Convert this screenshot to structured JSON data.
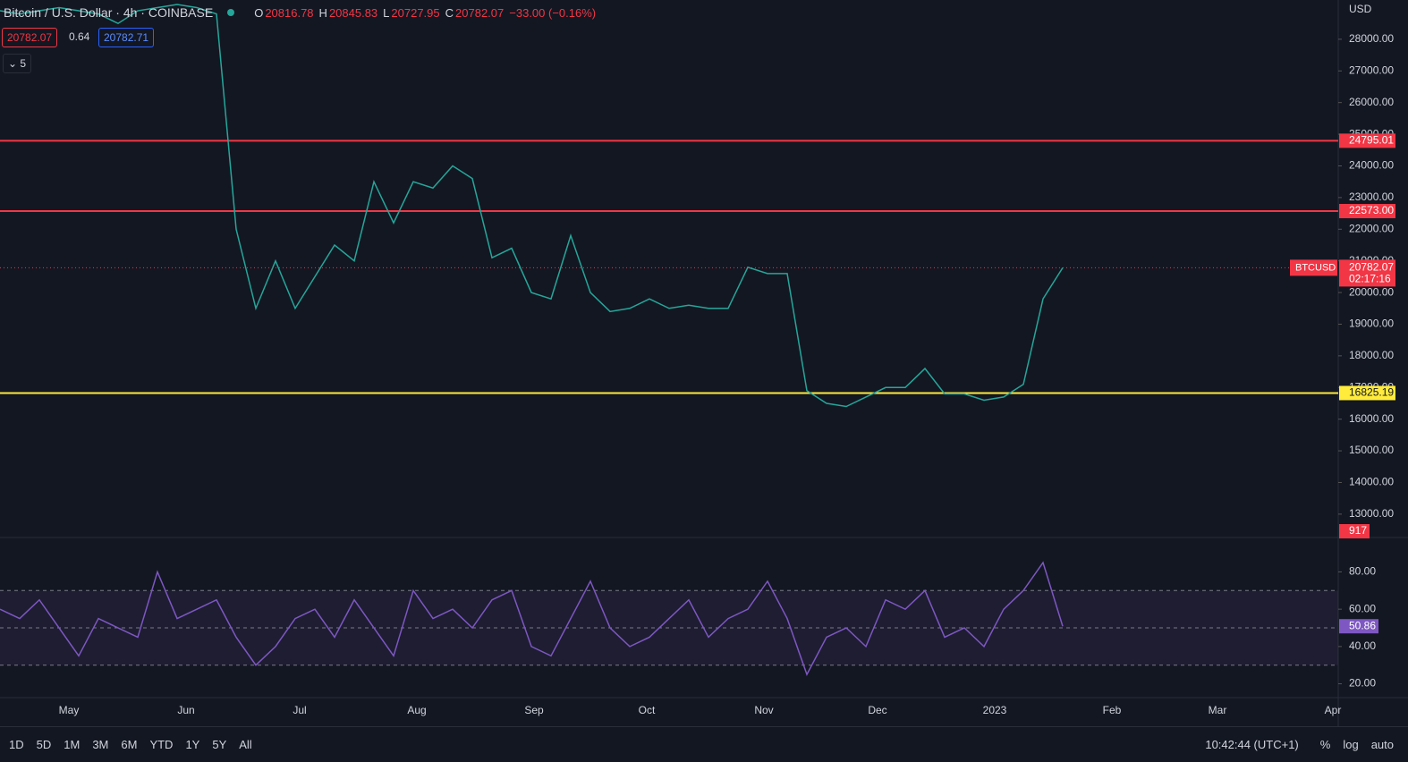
{
  "header": {
    "title": "Bitcoin / U.S. Dollar · 4h · COINBASE",
    "ohlc": [
      {
        "key": "O",
        "value": "20816.78"
      },
      {
        "key": "H",
        "value": "20845.83"
      },
      {
        "key": "L",
        "value": "20727.95"
      },
      {
        "key": "C",
        "value": "20782.07"
      }
    ],
    "change": "−33.00 (−0.16%)",
    "bid": "20782.07",
    "spread": "0.64",
    "ask": "20782.71",
    "indicators": "5"
  },
  "chart_data": {
    "type": "line",
    "name": "BTCUSD",
    "color": "#26a69a",
    "currency": "USD",
    "values": [
      28900,
      28800,
      28900,
      29000,
      28900,
      28800,
      28500,
      28900,
      29000,
      29100,
      29000,
      28800,
      22000,
      19500,
      21000,
      19500,
      20500,
      21500,
      21000,
      23500,
      22200,
      23500,
      23300,
      24000,
      23600,
      21100,
      21400,
      20000,
      19800,
      21800,
      20000,
      19400,
      19500,
      19800,
      19500,
      19600,
      19500,
      19500,
      20800,
      20600,
      20600,
      16900,
      16500,
      16400,
      16700,
      17000,
      17000,
      17600,
      16800,
      16800,
      16600,
      16700,
      17100,
      19800,
      20782.07
    ],
    "ylim": [
      12290,
      29240
    ],
    "yticks": [
      {
        "value": 13000,
        "label": "13000.00"
      },
      {
        "value": 14000,
        "label": "14000.00"
      },
      {
        "value": 15000,
        "label": "15000.00"
      },
      {
        "value": 16000,
        "label": "16000.00"
      },
      {
        "value": 17000,
        "label": "17000.00"
      },
      {
        "value": 18000,
        "label": "18000.00"
      },
      {
        "value": 19000,
        "label": "19000.00"
      },
      {
        "value": 20000,
        "label": "20000.00"
      },
      {
        "value": 21000,
        "label": "21000.00"
      },
      {
        "value": 22000,
        "label": "22000.00"
      },
      {
        "value": 23000,
        "label": "23000.00"
      },
      {
        "value": 24000,
        "label": "24000.00"
      },
      {
        "value": 25000,
        "label": "25000.00"
      },
      {
        "value": 26000,
        "label": "26000.00"
      },
      {
        "value": 27000,
        "label": "27000.00"
      },
      {
        "value": 28000,
        "label": "28000.00"
      }
    ],
    "levels": [
      {
        "value": 24795.01,
        "color": "#f23645"
      },
      {
        "value": {
          "value": 22573,
          "label": "22573.00"
        },
        "color": "#f23645"
      },
      {
        "value": 16825.19,
        "color": "#ffeb3b"
      }
    ],
    "last_price": {
      "value": 20782.07,
      "label": "20782.07"
    },
    "countdown": "02:17:16",
    "volume_last": "917",
    "months": [
      "May",
      "Jun",
      "Jul",
      "Aug",
      "Sep",
      "Oct",
      "Nov",
      "Dec",
      "2023",
      "Feb",
      "Mar",
      "Apr"
    ]
  },
  "rsi": {
    "type": "line",
    "color": "#7e57c2",
    "values": [
      60,
      55,
      65,
      50,
      35,
      55,
      50,
      45,
      80,
      55,
      60,
      65,
      45,
      30,
      40,
      55,
      60,
      45,
      65,
      50,
      35,
      70,
      55,
      60,
      50,
      65,
      70,
      40,
      35,
      55,
      75,
      50,
      40,
      45,
      55,
      65,
      45,
      55,
      60,
      75,
      55,
      25,
      45,
      50,
      40,
      65,
      60,
      70,
      45,
      50,
      40,
      60,
      70,
      85,
      50.86
    ],
    "ylim": [
      15,
      97
    ],
    "yticks": [
      {
        "value": 20,
        "label": "20.00"
      },
      {
        "value": 40,
        "label": "40.00"
      },
      {
        "value": 60,
        "label": "60.00"
      },
      {
        "value": 80,
        "label": "80.00"
      }
    ],
    "bands": [
      70,
      50,
      30
    ]
  },
  "toolbar": {
    "ranges": [
      "1D",
      "5D",
      "1M",
      "3M",
      "6M",
      "YTD",
      "1Y",
      "5Y",
      "All"
    ],
    "time": "10:42:44 (UTC+1)",
    "options": [
      "%",
      "log",
      "auto"
    ]
  }
}
